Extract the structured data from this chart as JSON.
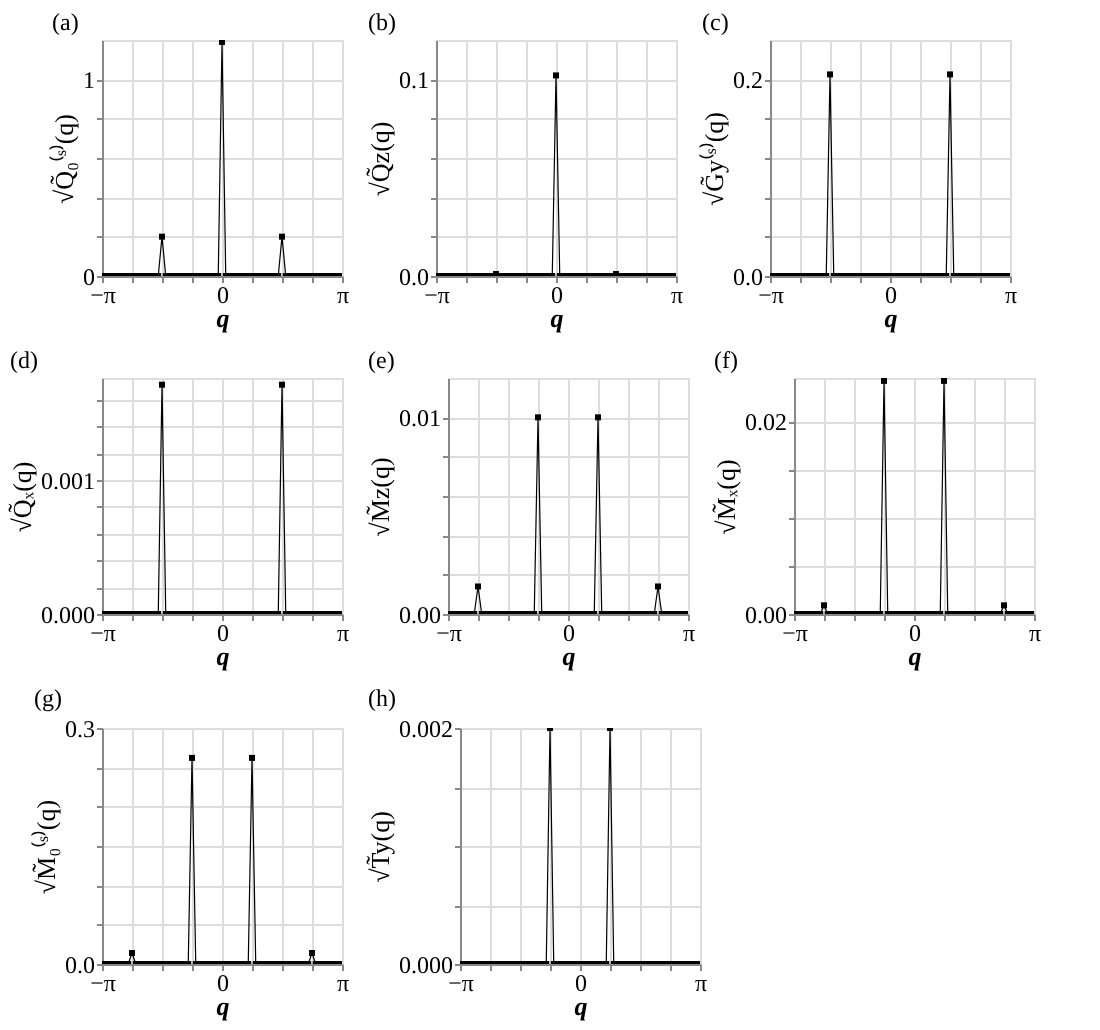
{
  "chart_data": [
    {
      "type": "line",
      "title": "(a)",
      "xlabel": "q",
      "ylabel": "√Q̃₀⁽ˢ⁾(q)",
      "grid": true,
      "marker": "square",
      "x": [
        -3.1416,
        -3.0434,
        -2.9452,
        -2.8471,
        -2.7489,
        -2.6507,
        -2.5525,
        -2.4544,
        -2.3562,
        -2.258,
        -2.1598,
        -2.0617,
        -1.9635,
        -1.8653,
        -1.7671,
        -1.669,
        -1.5708,
        -1.4726,
        -1.3744,
        -1.2763,
        -1.1781,
        -1.0799,
        -0.9817,
        -0.8836,
        -0.7854,
        -0.6872,
        -0.589,
        -0.4909,
        -0.3927,
        -0.2945,
        -0.1963,
        -0.0982,
        0,
        0.0982,
        0.1963,
        0.2945,
        0.3927,
        0.4909,
        0.589,
        0.6872,
        0.7854,
        0.8836,
        0.9817,
        1.0799,
        1.1781,
        1.2763,
        1.3744,
        1.4726,
        1.5708,
        1.669,
        1.7671,
        1.8653,
        1.9635,
        2.0617,
        2.1598,
        2.258,
        2.3562,
        2.4544,
        2.5525,
        2.6507,
        2.7489,
        2.8471,
        2.9452,
        3.0434,
        3.1416
      ],
      "xlim": [
        -3.1416,
        3.1416
      ],
      "xticks": [
        {
          "value": -3.1416,
          "label": "−π"
        },
        {
          "value": -2.3562,
          "label": null
        },
        {
          "value": -1.5708,
          "label": null
        },
        {
          "value": -0.7854,
          "label": null
        },
        0,
        {
          "value": 0.7854,
          "label": null
        },
        {
          "value": 1.5708,
          "label": null
        },
        {
          "value": 2.3562,
          "label": null
        },
        {
          "value": 3.1416,
          "label": "π"
        }
      ],
      "ylim": [
        0,
        1.2
      ],
      "yticks": [
        0,
        {
          "value": 0.2,
          "label": null
        },
        {
          "value": 0.4,
          "label": null
        },
        {
          "value": 0.6,
          "label": null
        },
        {
          "value": 0.8,
          "label": null
        },
        1
      ],
      "series": [
        {
          "color": "#000000",
          "values": [
            0,
            0,
            0,
            0,
            0,
            0,
            0,
            0,
            0,
            0,
            0,
            0,
            0,
            0,
            0,
            0,
            0.2,
            0,
            0,
            0,
            0,
            0,
            0,
            0,
            0,
            0,
            0,
            0,
            0,
            0,
            0,
            0,
            1.19,
            0,
            0,
            0,
            0,
            0,
            0,
            0,
            0,
            0,
            0,
            0,
            0,
            0,
            0,
            0,
            0.2,
            0,
            0,
            0,
            0,
            0,
            0,
            0,
            0,
            0,
            0,
            0,
            0,
            0,
            0,
            0,
            0
          ]
        }
      ]
    },
    {
      "type": "line",
      "title": "(b)",
      "xlabel": "q",
      "ylabel": "√Q̃z(q)",
      "grid": true,
      "marker": "square",
      "x": [
        -3.1416,
        -3.0434,
        -2.9452,
        -2.8471,
        -2.7489,
        -2.6507,
        -2.5525,
        -2.4544,
        -2.3562,
        -2.258,
        -2.1598,
        -2.0617,
        -1.9635,
        -1.8653,
        -1.7671,
        -1.669,
        -1.5708,
        -1.4726,
        -1.3744,
        -1.2763,
        -1.1781,
        -1.0799,
        -0.9817,
        -0.8836,
        -0.7854,
        -0.6872,
        -0.589,
        -0.4909,
        -0.3927,
        -0.2945,
        -0.1963,
        -0.0982,
        0,
        0.0982,
        0.1963,
        0.2945,
        0.3927,
        0.4909,
        0.589,
        0.6872,
        0.7854,
        0.8836,
        0.9817,
        1.0799,
        1.1781,
        1.2763,
        1.3744,
        1.4726,
        1.5708,
        1.669,
        1.7671,
        1.8653,
        1.9635,
        2.0617,
        2.1598,
        2.258,
        2.3562,
        2.4544,
        2.5525,
        2.6507,
        2.7489,
        2.8471,
        2.9452,
        3.0434,
        3.1416
      ],
      "xlim": [
        -3.1416,
        3.1416
      ],
      "xticks": [
        {
          "value": -3.1416,
          "label": "−π"
        },
        {
          "value": -2.3562,
          "label": null
        },
        {
          "value": -1.5708,
          "label": null
        },
        {
          "value": -0.7854,
          "label": null
        },
        0,
        {
          "value": 0.7854,
          "label": null
        },
        {
          "value": 1.5708,
          "label": null
        },
        {
          "value": 2.3562,
          "label": null
        },
        {
          "value": 3.1416,
          "label": "π"
        }
      ],
      "ylim": [
        0,
        0.12
      ],
      "yticks": [
        {
          "value": 0,
          "label": "0.0"
        },
        {
          "value": 0.02,
          "label": null
        },
        {
          "value": 0.04,
          "label": null
        },
        {
          "value": 0.06,
          "label": null
        },
        {
          "value": 0.08,
          "label": null
        },
        0.1
      ],
      "series": [
        {
          "color": "#000000",
          "values": [
            0,
            0,
            0,
            0,
            0,
            0,
            0,
            0,
            0,
            0,
            0,
            0,
            0,
            0,
            0,
            0,
            0.001,
            0,
            0,
            0,
            0,
            0,
            0,
            0,
            0,
            0,
            0,
            0,
            0,
            0,
            0,
            0,
            0.102,
            0,
            0,
            0,
            0,
            0,
            0,
            0,
            0,
            0,
            0,
            0,
            0,
            0,
            0,
            0,
            0.001,
            0,
            0,
            0,
            0,
            0,
            0,
            0,
            0,
            0,
            0,
            0,
            0,
            0,
            0,
            0,
            0
          ]
        }
      ]
    },
    {
      "type": "line",
      "title": "(c)",
      "xlabel": "q",
      "ylabel": "√G̃y⁽ˢ⁾(q)",
      "grid": true,
      "marker": "square",
      "x": [
        -3.1416,
        -3.0434,
        -2.9452,
        -2.8471,
        -2.7489,
        -2.6507,
        -2.5525,
        -2.4544,
        -2.3562,
        -2.258,
        -2.1598,
        -2.0617,
        -1.9635,
        -1.8653,
        -1.7671,
        -1.669,
        -1.5708,
        -1.4726,
        -1.3744,
        -1.2763,
        -1.1781,
        -1.0799,
        -0.9817,
        -0.8836,
        -0.7854,
        -0.6872,
        -0.589,
        -0.4909,
        -0.3927,
        -0.2945,
        -0.1963,
        -0.0982,
        0,
        0.0982,
        0.1963,
        0.2945,
        0.3927,
        0.4909,
        0.589,
        0.6872,
        0.7854,
        0.8836,
        0.9817,
        1.0799,
        1.1781,
        1.2763,
        1.3744,
        1.4726,
        1.5708,
        1.669,
        1.7671,
        1.8653,
        1.9635,
        2.0617,
        2.1598,
        2.258,
        2.3562,
        2.4544,
        2.5525,
        2.6507,
        2.7489,
        2.8471,
        2.9452,
        3.0434,
        3.1416
      ],
      "xlim": [
        -3.1416,
        3.1416
      ],
      "xticks": [
        {
          "value": -3.1416,
          "label": "−π"
        },
        {
          "value": -2.3562,
          "label": null
        },
        {
          "value": -1.5708,
          "label": null
        },
        {
          "value": -0.7854,
          "label": null
        },
        0,
        {
          "value": 0.7854,
          "label": null
        },
        {
          "value": 1.5708,
          "label": null
        },
        {
          "value": 2.3562,
          "label": null
        },
        {
          "value": 3.1416,
          "label": "π"
        }
      ],
      "ylim": [
        0,
        0.24
      ],
      "yticks": [
        {
          "value": 0,
          "label": "0.0"
        },
        {
          "value": 0.04,
          "label": null
        },
        {
          "value": 0.08,
          "label": null
        },
        {
          "value": 0.12,
          "label": null
        },
        {
          "value": 0.16,
          "label": null
        },
        0.2
      ],
      "series": [
        {
          "color": "#000000",
          "values": [
            0,
            0,
            0,
            0,
            0,
            0,
            0,
            0,
            0,
            0,
            0,
            0,
            0,
            0,
            0,
            0,
            0.205,
            0,
            0,
            0,
            0,
            0,
            0,
            0,
            0,
            0,
            0,
            0,
            0,
            0,
            0,
            0,
            0,
            0,
            0,
            0,
            0,
            0,
            0,
            0,
            0,
            0,
            0,
            0,
            0,
            0,
            0,
            0,
            0.205,
            0,
            0,
            0,
            0,
            0,
            0,
            0,
            0,
            0,
            0,
            0,
            0,
            0,
            0,
            0,
            0
          ]
        }
      ]
    },
    {
      "type": "line",
      "title": "(d)",
      "xlabel": "q",
      "ylabel": "√Q̃ₓ(q)",
      "grid": true,
      "marker": "square",
      "x": [
        -3.1416,
        -3.0434,
        -2.9452,
        -2.8471,
        -2.7489,
        -2.6507,
        -2.5525,
        -2.4544,
        -2.3562,
        -2.258,
        -2.1598,
        -2.0617,
        -1.9635,
        -1.8653,
        -1.7671,
        -1.669,
        -1.5708,
        -1.4726,
        -1.3744,
        -1.2763,
        -1.1781,
        -1.0799,
        -0.9817,
        -0.8836,
        -0.7854,
        -0.6872,
        -0.589,
        -0.4909,
        -0.3927,
        -0.2945,
        -0.1963,
        -0.0982,
        0,
        0.0982,
        0.1963,
        0.2945,
        0.3927,
        0.4909,
        0.589,
        0.6872,
        0.7854,
        0.8836,
        0.9817,
        1.0799,
        1.1781,
        1.2763,
        1.3744,
        1.4726,
        1.5708,
        1.669,
        1.7671,
        1.8653,
        1.9635,
        2.0617,
        2.1598,
        2.258,
        2.3562,
        2.4544,
        2.5525,
        2.6507,
        2.7489,
        2.8471,
        2.9452,
        3.0434,
        3.1416
      ],
      "xlim": [
        -3.1416,
        3.1416
      ],
      "xticks": [
        {
          "value": -3.1416,
          "label": "−π"
        },
        {
          "value": -2.3562,
          "label": null
        },
        {
          "value": -1.5708,
          "label": null
        },
        {
          "value": -0.7854,
          "label": null
        },
        0,
        {
          "value": 0.7854,
          "label": null
        },
        {
          "value": 1.5708,
          "label": null
        },
        {
          "value": 2.3562,
          "label": null
        },
        {
          "value": 3.1416,
          "label": "π"
        }
      ],
      "ylim": [
        0,
        0.00176
      ],
      "yticks": [
        {
          "value": 0,
          "label": "0.000"
        },
        {
          "value": 0.0002,
          "label": null
        },
        {
          "value": 0.0004,
          "label": null
        },
        {
          "value": 0.0006,
          "label": null
        },
        {
          "value": 0.0008,
          "label": null
        },
        0.001,
        {
          "value": 0.0012,
          "label": null
        },
        {
          "value": 0.0014,
          "label": null
        },
        {
          "value": 0.0016,
          "label": null
        }
      ],
      "series": [
        {
          "color": "#000000",
          "values": [
            0,
            0,
            0,
            0,
            0,
            0,
            0,
            0,
            0,
            0,
            0,
            0,
            0,
            0,
            0,
            0,
            0.00171,
            0,
            0,
            0,
            0,
            0,
            0,
            0,
            0,
            0,
            0,
            0,
            0,
            0,
            0,
            0,
            0,
            0,
            0,
            0,
            0,
            0,
            0,
            0,
            0,
            0,
            0,
            0,
            0,
            0,
            0,
            0,
            0.00171,
            0,
            0,
            0,
            0,
            0,
            0,
            0,
            0,
            0,
            0,
            0,
            0,
            0,
            0,
            0,
            0
          ]
        }
      ]
    },
    {
      "type": "line",
      "title": "(e)",
      "xlabel": "q",
      "ylabel": "√M̃z(q)",
      "grid": true,
      "marker": "square",
      "x": [
        -3.1416,
        -3.0434,
        -2.9452,
        -2.8471,
        -2.7489,
        -2.6507,
        -2.5525,
        -2.4544,
        -2.3562,
        -2.258,
        -2.1598,
        -2.0617,
        -1.9635,
        -1.8653,
        -1.7671,
        -1.669,
        -1.5708,
        -1.4726,
        -1.3744,
        -1.2763,
        -1.1781,
        -1.0799,
        -0.9817,
        -0.8836,
        -0.7854,
        -0.6872,
        -0.589,
        -0.4909,
        -0.3927,
        -0.2945,
        -0.1963,
        -0.0982,
        0,
        0.0982,
        0.1963,
        0.2945,
        0.3927,
        0.4909,
        0.589,
        0.6872,
        0.7854,
        0.8836,
        0.9817,
        1.0799,
        1.1781,
        1.2763,
        1.3744,
        1.4726,
        1.5708,
        1.669,
        1.7671,
        1.8653,
        1.9635,
        2.0617,
        2.1598,
        2.258,
        2.3562,
        2.4544,
        2.5525,
        2.6507,
        2.7489,
        2.8471,
        2.9452,
        3.0434,
        3.1416
      ],
      "xlim": [
        -3.1416,
        3.1416
      ],
      "xticks": [
        {
          "value": -3.1416,
          "label": "−π"
        },
        {
          "value": -2.3562,
          "label": null
        },
        {
          "value": -1.5708,
          "label": null
        },
        {
          "value": -0.7854,
          "label": null
        },
        0,
        {
          "value": 0.7854,
          "label": null
        },
        {
          "value": 1.5708,
          "label": null
        },
        {
          "value": 2.3562,
          "label": null
        },
        {
          "value": 3.1416,
          "label": "π"
        }
      ],
      "ylim": [
        0,
        0.012
      ],
      "yticks": [
        {
          "value": 0,
          "label": "0.00"
        },
        {
          "value": 0.002,
          "label": null
        },
        {
          "value": 0.004,
          "label": null
        },
        {
          "value": 0.006,
          "label": null
        },
        {
          "value": 0.008,
          "label": null
        },
        0.01
      ],
      "series": [
        {
          "color": "#000000",
          "values": [
            0,
            0,
            0,
            0,
            0,
            0,
            0,
            0,
            0.0014,
            0,
            0,
            0,
            0,
            0,
            0,
            0,
            0,
            0,
            0,
            0,
            0,
            0,
            0,
            0,
            0.01,
            0,
            0,
            0,
            0,
            0,
            0,
            0,
            0,
            0,
            0,
            0,
            0,
            0,
            0,
            0,
            0.01,
            0,
            0,
            0,
            0,
            0,
            0,
            0,
            0,
            0,
            0,
            0,
            0,
            0,
            0,
            0,
            0.0014,
            0,
            0,
            0,
            0,
            0,
            0,
            0,
            0
          ]
        }
      ]
    },
    {
      "type": "line",
      "title": "(f)",
      "xlabel": "q",
      "ylabel": "√M̃ₓ(q)",
      "grid": true,
      "marker": "square",
      "x": [
        -3.1416,
        -3.0434,
        -2.9452,
        -2.8471,
        -2.7489,
        -2.6507,
        -2.5525,
        -2.4544,
        -2.3562,
        -2.258,
        -2.1598,
        -2.0617,
        -1.9635,
        -1.8653,
        -1.7671,
        -1.669,
        -1.5708,
        -1.4726,
        -1.3744,
        -1.2763,
        -1.1781,
        -1.0799,
        -0.9817,
        -0.8836,
        -0.7854,
        -0.6872,
        -0.589,
        -0.4909,
        -0.3927,
        -0.2945,
        -0.1963,
        -0.0982,
        0,
        0.0982,
        0.1963,
        0.2945,
        0.3927,
        0.4909,
        0.589,
        0.6872,
        0.7854,
        0.8836,
        0.9817,
        1.0799,
        1.1781,
        1.2763,
        1.3744,
        1.4726,
        1.5708,
        1.669,
        1.7671,
        1.8653,
        1.9635,
        2.0617,
        2.1598,
        2.258,
        2.3562,
        2.4544,
        2.5525,
        2.6507,
        2.7489,
        2.8471,
        2.9452,
        3.0434,
        3.1416
      ],
      "xlim": [
        -3.1416,
        3.1416
      ],
      "xticks": [
        {
          "value": -3.1416,
          "label": "−π"
        },
        {
          "value": -2.3562,
          "label": null
        },
        {
          "value": -1.5708,
          "label": null
        },
        {
          "value": -0.7854,
          "label": null
        },
        0,
        {
          "value": 0.7854,
          "label": null
        },
        {
          "value": 1.5708,
          "label": null
        },
        {
          "value": 2.3562,
          "label": null
        },
        {
          "value": 3.1416,
          "label": "π"
        }
      ],
      "ylim": [
        0,
        0.0245
      ],
      "yticks": [
        {
          "value": 0,
          "label": "0.00"
        },
        {
          "value": 0.005,
          "label": null
        },
        {
          "value": 0.01,
          "label": null
        },
        {
          "value": 0.015,
          "label": null
        },
        0.02
      ],
      "series": [
        {
          "color": "#000000",
          "values": [
            0,
            0,
            0,
            0,
            0,
            0,
            0,
            0,
            0.0009,
            0,
            0,
            0,
            0,
            0,
            0,
            0,
            0,
            0,
            0,
            0,
            0,
            0,
            0,
            0,
            0.0242,
            0,
            0,
            0,
            0,
            0,
            0,
            0,
            0,
            0,
            0,
            0,
            0,
            0,
            0,
            0,
            0.0242,
            0,
            0,
            0,
            0,
            0,
            0,
            0,
            0,
            0,
            0,
            0,
            0,
            0,
            0,
            0,
            0.0009,
            0,
            0,
            0,
            0,
            0,
            0,
            0,
            0
          ]
        }
      ]
    },
    {
      "type": "line",
      "title": "(g)",
      "xlabel": "q",
      "ylabel": "√M̃₀⁽ˢ⁾(q)",
      "grid": true,
      "marker": "square",
      "x": [
        -3.1416,
        -3.0434,
        -2.9452,
        -2.8471,
        -2.7489,
        -2.6507,
        -2.5525,
        -2.4544,
        -2.3562,
        -2.258,
        -2.1598,
        -2.0617,
        -1.9635,
        -1.8653,
        -1.7671,
        -1.669,
        -1.5708,
        -1.4726,
        -1.3744,
        -1.2763,
        -1.1781,
        -1.0799,
        -0.9817,
        -0.8836,
        -0.7854,
        -0.6872,
        -0.589,
        -0.4909,
        -0.3927,
        -0.2945,
        -0.1963,
        -0.0982,
        0,
        0.0982,
        0.1963,
        0.2945,
        0.3927,
        0.4909,
        0.589,
        0.6872,
        0.7854,
        0.8836,
        0.9817,
        1.0799,
        1.1781,
        1.2763,
        1.3744,
        1.4726,
        1.5708,
        1.669,
        1.7671,
        1.8653,
        1.9635,
        2.0617,
        2.1598,
        2.258,
        2.3562,
        2.4544,
        2.5525,
        2.6507,
        2.7489,
        2.8471,
        2.9452,
        3.0434,
        3.1416
      ],
      "xlim": [
        -3.1416,
        3.1416
      ],
      "xticks": [
        {
          "value": -3.1416,
          "label": "−π"
        },
        {
          "value": -2.3562,
          "label": null
        },
        {
          "value": -1.5708,
          "label": null
        },
        {
          "value": -0.7854,
          "label": null
        },
        0,
        {
          "value": 0.7854,
          "label": null
        },
        {
          "value": 1.5708,
          "label": null
        },
        {
          "value": 2.3562,
          "label": null
        },
        {
          "value": 3.1416,
          "label": "π"
        }
      ],
      "ylim": [
        0,
        0.3
      ],
      "yticks": [
        {
          "value": 0,
          "label": "0.0"
        },
        {
          "value": 0.05,
          "label": null
        },
        {
          "value": 0.1,
          "label": null
        },
        {
          "value": 0.15,
          "label": null
        },
        {
          "value": 0.2,
          "label": null
        },
        {
          "value": 0.25,
          "label": null
        },
        0.3
      ],
      "series": [
        {
          "color": "#000000",
          "values": [
            0,
            0,
            0,
            0,
            0,
            0,
            0,
            0,
            0.014,
            0,
            0,
            0,
            0,
            0,
            0,
            0,
            0,
            0,
            0,
            0,
            0,
            0,
            0,
            0,
            0.262,
            0,
            0,
            0,
            0,
            0,
            0,
            0,
            0,
            0,
            0,
            0,
            0,
            0,
            0,
            0,
            0.262,
            0,
            0,
            0,
            0,
            0,
            0,
            0,
            0,
            0,
            0,
            0,
            0,
            0,
            0,
            0,
            0.014,
            0,
            0,
            0,
            0,
            0,
            0,
            0,
            0
          ]
        }
      ]
    },
    {
      "type": "line",
      "title": "(h)",
      "xlabel": "q",
      "ylabel": "√T̃y(q)",
      "grid": true,
      "marker": "square",
      "x": [
        -3.1416,
        -3.0434,
        -2.9452,
        -2.8471,
        -2.7489,
        -2.6507,
        -2.5525,
        -2.4544,
        -2.3562,
        -2.258,
        -2.1598,
        -2.0617,
        -1.9635,
        -1.8653,
        -1.7671,
        -1.669,
        -1.5708,
        -1.4726,
        -1.3744,
        -1.2763,
        -1.1781,
        -1.0799,
        -0.9817,
        -0.8836,
        -0.7854,
        -0.6872,
        -0.589,
        -0.4909,
        -0.3927,
        -0.2945,
        -0.1963,
        -0.0982,
        0,
        0.0982,
        0.1963,
        0.2945,
        0.3927,
        0.4909,
        0.589,
        0.6872,
        0.7854,
        0.8836,
        0.9817,
        1.0799,
        1.1781,
        1.2763,
        1.3744,
        1.4726,
        1.5708,
        1.669,
        1.7671,
        1.8653,
        1.9635,
        2.0617,
        2.1598,
        2.258,
        2.3562,
        2.4544,
        2.5525,
        2.6507,
        2.7489,
        2.8471,
        2.9452,
        3.0434,
        3.1416
      ],
      "xlim": [
        -3.1416,
        3.1416
      ],
      "xticks": [
        {
          "value": -3.1416,
          "label": "−π"
        },
        {
          "value": -2.3562,
          "label": null
        },
        {
          "value": -1.5708,
          "label": null
        },
        {
          "value": -0.7854,
          "label": null
        },
        0,
        {
          "value": 0.7854,
          "label": null
        },
        {
          "value": 1.5708,
          "label": null
        },
        {
          "value": 2.3562,
          "label": null
        },
        {
          "value": 3.1416,
          "label": "π"
        }
      ],
      "ylim": [
        0,
        0.002
      ],
      "yticks": [
        {
          "value": 0,
          "label": "0.000"
        },
        {
          "value": 0.0005,
          "label": null
        },
        {
          "value": 0.001,
          "label": null
        },
        {
          "value": 0.0015,
          "label": null
        },
        {
          "value": 0.002,
          "label": "0.002"
        }
      ],
      "series": [
        {
          "color": "#000000",
          "values": [
            0,
            0,
            0,
            0,
            0,
            0,
            0,
            0,
            0,
            0,
            0,
            0,
            0,
            0,
            0,
            0,
            0,
            0,
            0,
            0,
            0,
            0,
            0,
            0,
            0.002,
            0,
            0,
            0,
            0,
            0,
            0,
            0,
            0,
            0,
            0,
            0,
            0,
            0,
            0,
            0,
            0.002,
            0,
            0,
            0,
            0,
            0,
            0,
            0,
            0,
            0,
            0,
            0,
            0,
            0,
            0,
            0,
            0,
            0,
            0,
            0,
            0,
            0,
            0,
            0,
            0
          ]
        }
      ]
    }
  ]
}
